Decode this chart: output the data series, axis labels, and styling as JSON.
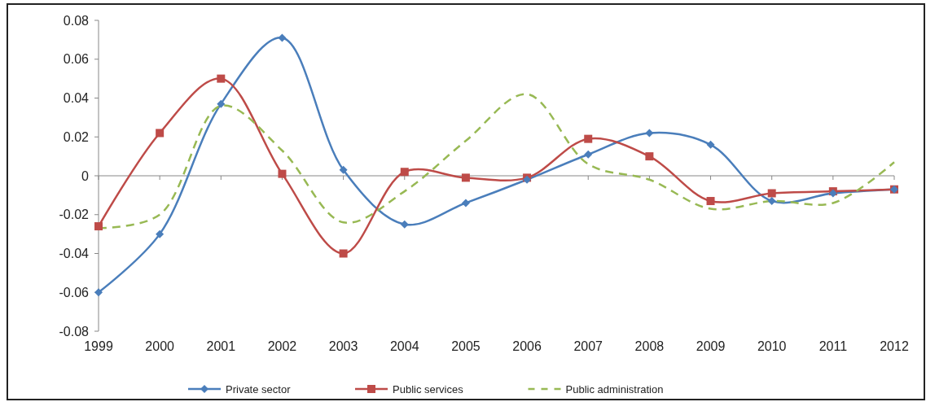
{
  "chart_data": {
    "type": "line",
    "categories": [
      "1999",
      "2000",
      "2001",
      "2002",
      "2003",
      "2004",
      "2005",
      "2006",
      "2007",
      "2008",
      "2009",
      "2010",
      "2011",
      "2012"
    ],
    "series": [
      {
        "name": "Private sector",
        "color": "#4a7ebb",
        "marker": "diamond",
        "values": [
          -0.06,
          -0.03,
          0.037,
          0.071,
          0.003,
          -0.025,
          -0.014,
          -0.002,
          0.011,
          0.022,
          0.016,
          -0.013,
          -0.009,
          -0.007
        ]
      },
      {
        "name": "Public services",
        "color": "#be4b48",
        "marker": "square",
        "values": [
          -0.026,
          0.022,
          0.05,
          0.001,
          -0.04,
          0.002,
          -0.001,
          -0.001,
          0.019,
          0.01,
          -0.013,
          -0.009,
          -0.008,
          -0.007
        ]
      },
      {
        "name": "Public administration",
        "color": "#98b954",
        "marker": "none",
        "line_style": "dashed",
        "values": [
          -0.027,
          -0.02,
          0.036,
          0.013,
          -0.024,
          -0.008,
          0.018,
          0.042,
          0.006,
          -0.002,
          -0.017,
          -0.013,
          -0.014,
          0.007
        ]
      }
    ],
    "ylim": [
      -0.08,
      0.08
    ],
    "yticks": [
      {
        "value": -0.08,
        "label": "-0.08"
      },
      {
        "value": -0.06,
        "label": "-0.06"
      },
      {
        "value": -0.04,
        "label": "-0.04"
      },
      {
        "value": -0.02,
        "label": "-0.02"
      },
      0,
      0.02,
      0.04,
      0.06,
      0.08
    ],
    "legend": "bottom"
  }
}
